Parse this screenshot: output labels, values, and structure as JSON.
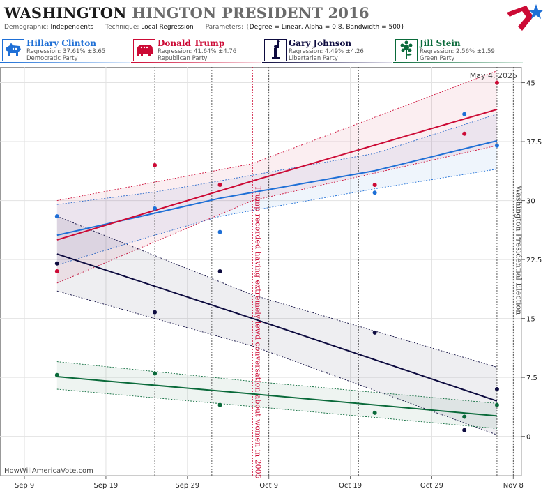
{
  "header": {
    "title_main": "WASHINGTON",
    "title_secondary": "HINGTON PRESIDENT 2016",
    "params": [
      {
        "key": "Demographic:",
        "value": "Independents"
      },
      {
        "key": "Technique:",
        "value": "Local Regression"
      },
      {
        "key": "Parameters:",
        "value": "{Degree = Linear, Alpha = 0.8, Bandwidth = 500}"
      }
    ]
  },
  "candidates": [
    {
      "name": "Hillary Clinton",
      "regression": "Regression: 37.61% ±3.65",
      "party": "Democratic Party",
      "color": "#1e6fd6",
      "icon": "donkey-icon"
    },
    {
      "name": "Donald Trump",
      "regression": "Regression: 41.64% ±4.76",
      "party": "Republican Party",
      "color": "#cc0a35",
      "icon": "elephant-icon"
    },
    {
      "name": "Gary Johnson",
      "regression": "Regression: 4.49% ±4.26",
      "party": "Libertarian Party",
      "color": "#0d0b3f",
      "icon": "liberty-statue-icon"
    },
    {
      "name": "Jill Stein",
      "regression": "Regression: 2.56% ±1.59",
      "party": "Green Party",
      "color": "#0a6a3a",
      "icon": "sunflower-icon"
    }
  ],
  "chart_data": {
    "type": "scatter",
    "date_label": "May 4, 2025",
    "watermark": "HowWillAmericaVote.com",
    "x_ticks": [
      "Sep 9",
      "Sep 19",
      "Sep 29",
      "Oct 9",
      "Oct 19",
      "Oct 29",
      "Nov 8"
    ],
    "y_ticks": [
      "0",
      "7.5",
      "15",
      "22.5",
      "30",
      "37.5",
      "45"
    ],
    "xlim": [
      "2016-09-06",
      "2016-11-09"
    ],
    "ylim": [
      -5,
      47
    ],
    "annotations": [
      {
        "date": "2016-10-07",
        "text": "Trump recorded having extremely lewd conversation about women in 2005",
        "color": "#cc0a35"
      },
      {
        "date": "2016-11-08",
        "text": "Washington Presidential Election",
        "color": "#444444"
      }
    ],
    "poll_dates": [
      "2016-09-25",
      "2016-10-02",
      "2016-10-09",
      "2016-10-20",
      "2016-11-06"
    ],
    "series": [
      {
        "name": "Hillary Clinton",
        "color": "#1e6fd6",
        "points": [
          [
            "2016-09-13",
            28.0
          ],
          [
            "2016-09-25",
            29.0
          ],
          [
            "2016-10-03",
            26.0
          ],
          [
            "2016-10-22",
            31.0
          ],
          [
            "2016-11-02",
            41.0
          ],
          [
            "2016-11-06",
            37.0
          ]
        ],
        "fit": [
          [
            "2016-09-13",
            25.6
          ],
          [
            "2016-09-25",
            28.4
          ],
          [
            "2016-10-03",
            30.3
          ],
          [
            "2016-10-22",
            33.8
          ],
          [
            "2016-11-06",
            37.6
          ]
        ],
        "upper": [
          [
            "2016-09-13",
            29.5
          ],
          [
            "2016-09-25",
            31.1
          ],
          [
            "2016-10-03",
            32.5
          ],
          [
            "2016-10-22",
            36.0
          ],
          [
            "2016-11-06",
            41.0
          ]
        ],
        "lower": [
          [
            "2016-09-13",
            21.8
          ],
          [
            "2016-09-25",
            25.6
          ],
          [
            "2016-10-03",
            28.0
          ],
          [
            "2016-10-22",
            31.5
          ],
          [
            "2016-11-06",
            34.0
          ]
        ]
      },
      {
        "name": "Donald Trump",
        "color": "#cc0a35",
        "points": [
          [
            "2016-09-13",
            21.0
          ],
          [
            "2016-09-25",
            34.5
          ],
          [
            "2016-10-03",
            32.0
          ],
          [
            "2016-10-22",
            32.0
          ],
          [
            "2016-11-02",
            38.5
          ],
          [
            "2016-11-06",
            45.0
          ]
        ],
        "fit": [
          [
            "2016-09-13",
            25.0
          ],
          [
            "2016-10-07",
            32.5
          ],
          [
            "2016-11-06",
            41.6
          ]
        ],
        "upper": [
          [
            "2016-09-13",
            30.0
          ],
          [
            "2016-10-07",
            34.7
          ],
          [
            "2016-11-06",
            46.5
          ]
        ],
        "lower": [
          [
            "2016-09-13",
            19.5
          ],
          [
            "2016-10-07",
            30.0
          ],
          [
            "2016-11-06",
            37.0
          ]
        ]
      },
      {
        "name": "Gary Johnson",
        "color": "#0d0b3f",
        "points": [
          [
            "2016-09-13",
            22.0
          ],
          [
            "2016-09-25",
            15.8
          ],
          [
            "2016-10-03",
            21.0
          ],
          [
            "2016-10-22",
            13.2
          ],
          [
            "2016-11-02",
            0.8
          ],
          [
            "2016-11-06",
            6.0
          ]
        ],
        "fit": [
          [
            "2016-09-13",
            23.2
          ],
          [
            "2016-10-07",
            15.0
          ],
          [
            "2016-11-06",
            4.5
          ]
        ],
        "upper": [
          [
            "2016-09-13",
            28.0
          ],
          [
            "2016-10-07",
            18.0
          ],
          [
            "2016-11-06",
            8.8
          ]
        ],
        "lower": [
          [
            "2016-09-13",
            18.5
          ],
          [
            "2016-10-07",
            11.5
          ],
          [
            "2016-11-06",
            0.2
          ]
        ]
      },
      {
        "name": "Jill Stein",
        "color": "#0a6a3a",
        "points": [
          [
            "2016-09-13",
            7.8
          ],
          [
            "2016-09-25",
            8.0
          ],
          [
            "2016-10-03",
            4.0
          ],
          [
            "2016-10-22",
            3.0
          ],
          [
            "2016-11-02",
            2.5
          ],
          [
            "2016-11-06",
            4.0
          ]
        ],
        "fit": [
          [
            "2016-09-13",
            7.6
          ],
          [
            "2016-10-07",
            5.4
          ],
          [
            "2016-11-06",
            2.6
          ]
        ],
        "upper": [
          [
            "2016-09-13",
            9.5
          ],
          [
            "2016-10-07",
            7.0
          ],
          [
            "2016-11-06",
            4.2
          ]
        ],
        "lower": [
          [
            "2016-09-13",
            6.0
          ],
          [
            "2016-10-07",
            3.8
          ],
          [
            "2016-11-06",
            1.0
          ]
        ]
      }
    ]
  }
}
